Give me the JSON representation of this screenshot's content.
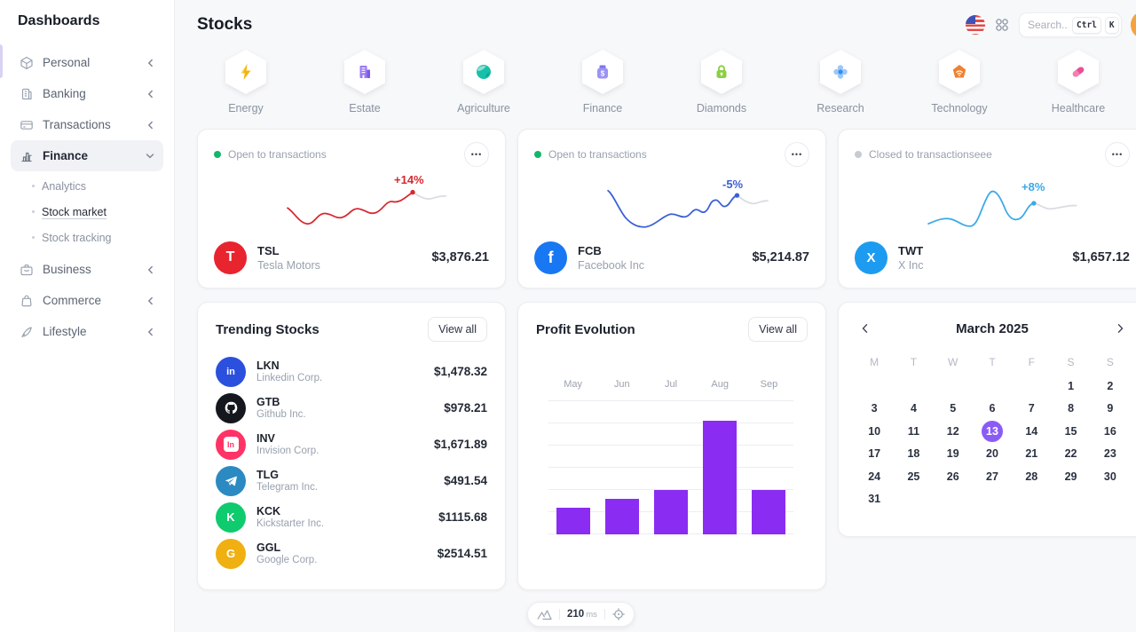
{
  "sidebar": {
    "title": "Dashboards",
    "items": [
      {
        "label": "Personal",
        "icon": "cube-icon"
      },
      {
        "label": "Banking",
        "icon": "bank-icon"
      },
      {
        "label": "Transactions",
        "icon": "credit-card-icon"
      },
      {
        "label": "Finance",
        "icon": "bar-chart-icon",
        "expanded": true,
        "active": true
      },
      {
        "label": "Business",
        "icon": "briefcase-icon"
      },
      {
        "label": "Commerce",
        "icon": "shop-bag-icon"
      },
      {
        "label": "Lifestyle",
        "icon": "feather-icon"
      }
    ],
    "finance_children": [
      {
        "label": "Analytics",
        "active": false
      },
      {
        "label": "Stock market",
        "active": true
      },
      {
        "label": "Stock tracking",
        "active": false
      }
    ]
  },
  "header": {
    "title": "Stocks",
    "language_icon": "us-flag-icon",
    "apps_icon": "apps-grid-icon",
    "search": {
      "placeholder": "Search...",
      "shortcut_keys": [
        "Ctrl",
        "K"
      ]
    }
  },
  "categories": [
    {
      "label": "Energy",
      "icon": "lightning-icon"
    },
    {
      "label": "Estate",
      "icon": "building-icon"
    },
    {
      "label": "Agriculture",
      "icon": "globe-icon"
    },
    {
      "label": "Finance",
      "icon": "money-bag-icon"
    },
    {
      "label": "Diamonds",
      "icon": "lock-icon"
    },
    {
      "label": "Research",
      "icon": "atom-icon"
    },
    {
      "label": "Technology",
      "icon": "smart-home-icon"
    },
    {
      "label": "Healthcare",
      "icon": "pill-icon"
    }
  ],
  "stock_cards": [
    {
      "status": "Open to transactions",
      "status_color": "#12b76a",
      "ticker": "TSL",
      "company": "Tesla Motors",
      "price": "$3,876.21",
      "change": "+14%",
      "line_color": "#d7282f",
      "logo_bg": "#e8242f",
      "logo_glyph": "T",
      "logo_icon": "tesla-logo-icon"
    },
    {
      "status": "Open to transactions",
      "status_color": "#12b76a",
      "ticker": "FCB",
      "company": "Facebook Inc",
      "price": "$5,214.87",
      "change": "-5%",
      "line_color": "#3a5fd7",
      "logo_bg": "#1877f2",
      "logo_glyph": "f",
      "logo_icon": "facebook-logo-icon"
    },
    {
      "status": "Closed to transactionseee",
      "status_color": "#c6cbd4",
      "ticker": "TWT",
      "company": "X Inc",
      "price": "$1,657.12",
      "change": "+8%",
      "line_color": "#3aa9e8",
      "logo_bg": "#1d9bf0",
      "logo_glyph": "X",
      "logo_icon": "x-logo-icon"
    }
  ],
  "trending": {
    "title": "Trending Stocks",
    "view_all_label": "View all",
    "items": [
      {
        "ticker": "LKN",
        "company": "Linkedin Corp.",
        "price": "$1,478.32",
        "logo_bg": "#2b50dd",
        "logo_glyph": "in",
        "logo_icon": "linkedin-logo-icon"
      },
      {
        "ticker": "GTB",
        "company": "Github Inc.",
        "price": "$978.21",
        "logo_bg": "#15171e",
        "logo_glyph": "",
        "logo_icon": "github-logo-icon"
      },
      {
        "ticker": "INV",
        "company": "Invision Corp.",
        "price": "$1,671.89",
        "logo_bg": "#ff3366",
        "logo_glyph": "In",
        "logo_icon": "invision-logo-icon"
      },
      {
        "ticker": "TLG",
        "company": "Telegram Inc.",
        "price": "$491.54",
        "logo_bg": "#2b8ac2",
        "logo_glyph": "",
        "logo_icon": "telegram-logo-icon"
      },
      {
        "ticker": "KCK",
        "company": "Kickstarter Inc.",
        "price": "$1115.68",
        "logo_bg": "#0ecb6e",
        "logo_glyph": "K",
        "logo_icon": "kickstarter-logo-icon"
      },
      {
        "ticker": "GGL",
        "company": "Google Corp.",
        "price": "$2514.51",
        "logo_bg": "#f0b012",
        "logo_glyph": "G",
        "logo_icon": "google-logo-icon"
      }
    ]
  },
  "profit": {
    "title": "Profit Evolution",
    "view_all_label": "View all"
  },
  "chart_data": [
    {
      "type": "bar",
      "title": "Profit Evolution",
      "categories": [
        "May",
        "Jun",
        "Jul",
        "Aug",
        "Sep"
      ],
      "values": [
        12,
        16,
        20,
        51,
        20
      ],
      "ylim": [
        0,
        60
      ],
      "bar_color": "#8b2cf2",
      "grid": true,
      "legend": false,
      "xlabel": "",
      "ylabel": ""
    },
    {
      "type": "line",
      "title": "TSL sparkline",
      "change": "+14%",
      "color": "#d7282f"
    },
    {
      "type": "line",
      "title": "FCB sparkline",
      "change": "-5%",
      "color": "#3a5fd7"
    },
    {
      "type": "line",
      "title": "TWT sparkline",
      "change": "+8%",
      "color": "#3aa9e8"
    }
  ],
  "calendar": {
    "month_label": "March 2025",
    "weekdays": [
      "M",
      "T",
      "W",
      "T",
      "F",
      "S",
      "S"
    ],
    "start_offset": 5,
    "days_in_month": 31,
    "selected_day": 13,
    "selected_color": "#8a5cf6"
  },
  "status_bar": {
    "value": "210",
    "unit": "ms",
    "left_icon": "mountains-icon",
    "right_icon": "crosshair-icon"
  }
}
